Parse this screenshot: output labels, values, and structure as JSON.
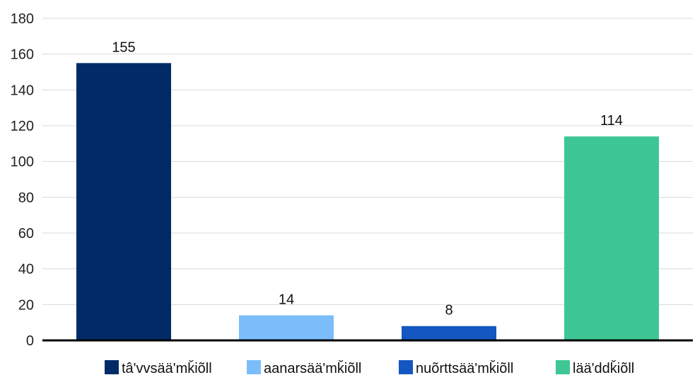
{
  "chart_data": {
    "type": "bar",
    "categories": [
      "tâ'vvsää'mǩiõll",
      "aanarsää'mǩiõll",
      "nuõrttsää'mǩiõll",
      "lää'ddǩiõll"
    ],
    "values": [
      155,
      14,
      8,
      114
    ],
    "colors": [
      "#002b66",
      "#7bbdfb",
      "#1557c0",
      "#3ec795"
    ],
    "ylim": [
      0,
      180
    ],
    "yticks": [
      0,
      20,
      40,
      60,
      80,
      100,
      120,
      140,
      160,
      180
    ],
    "grid": true,
    "data_labels": true,
    "legend": {
      "position": "bottom",
      "entries": [
        "tâ'vvsää'mǩiõll",
        "aanarsää'mǩiõll",
        "nuõrttsää'mǩiõll",
        "lää'ddǩiõll"
      ]
    },
    "title": "",
    "xlabel": "",
    "ylabel": ""
  }
}
